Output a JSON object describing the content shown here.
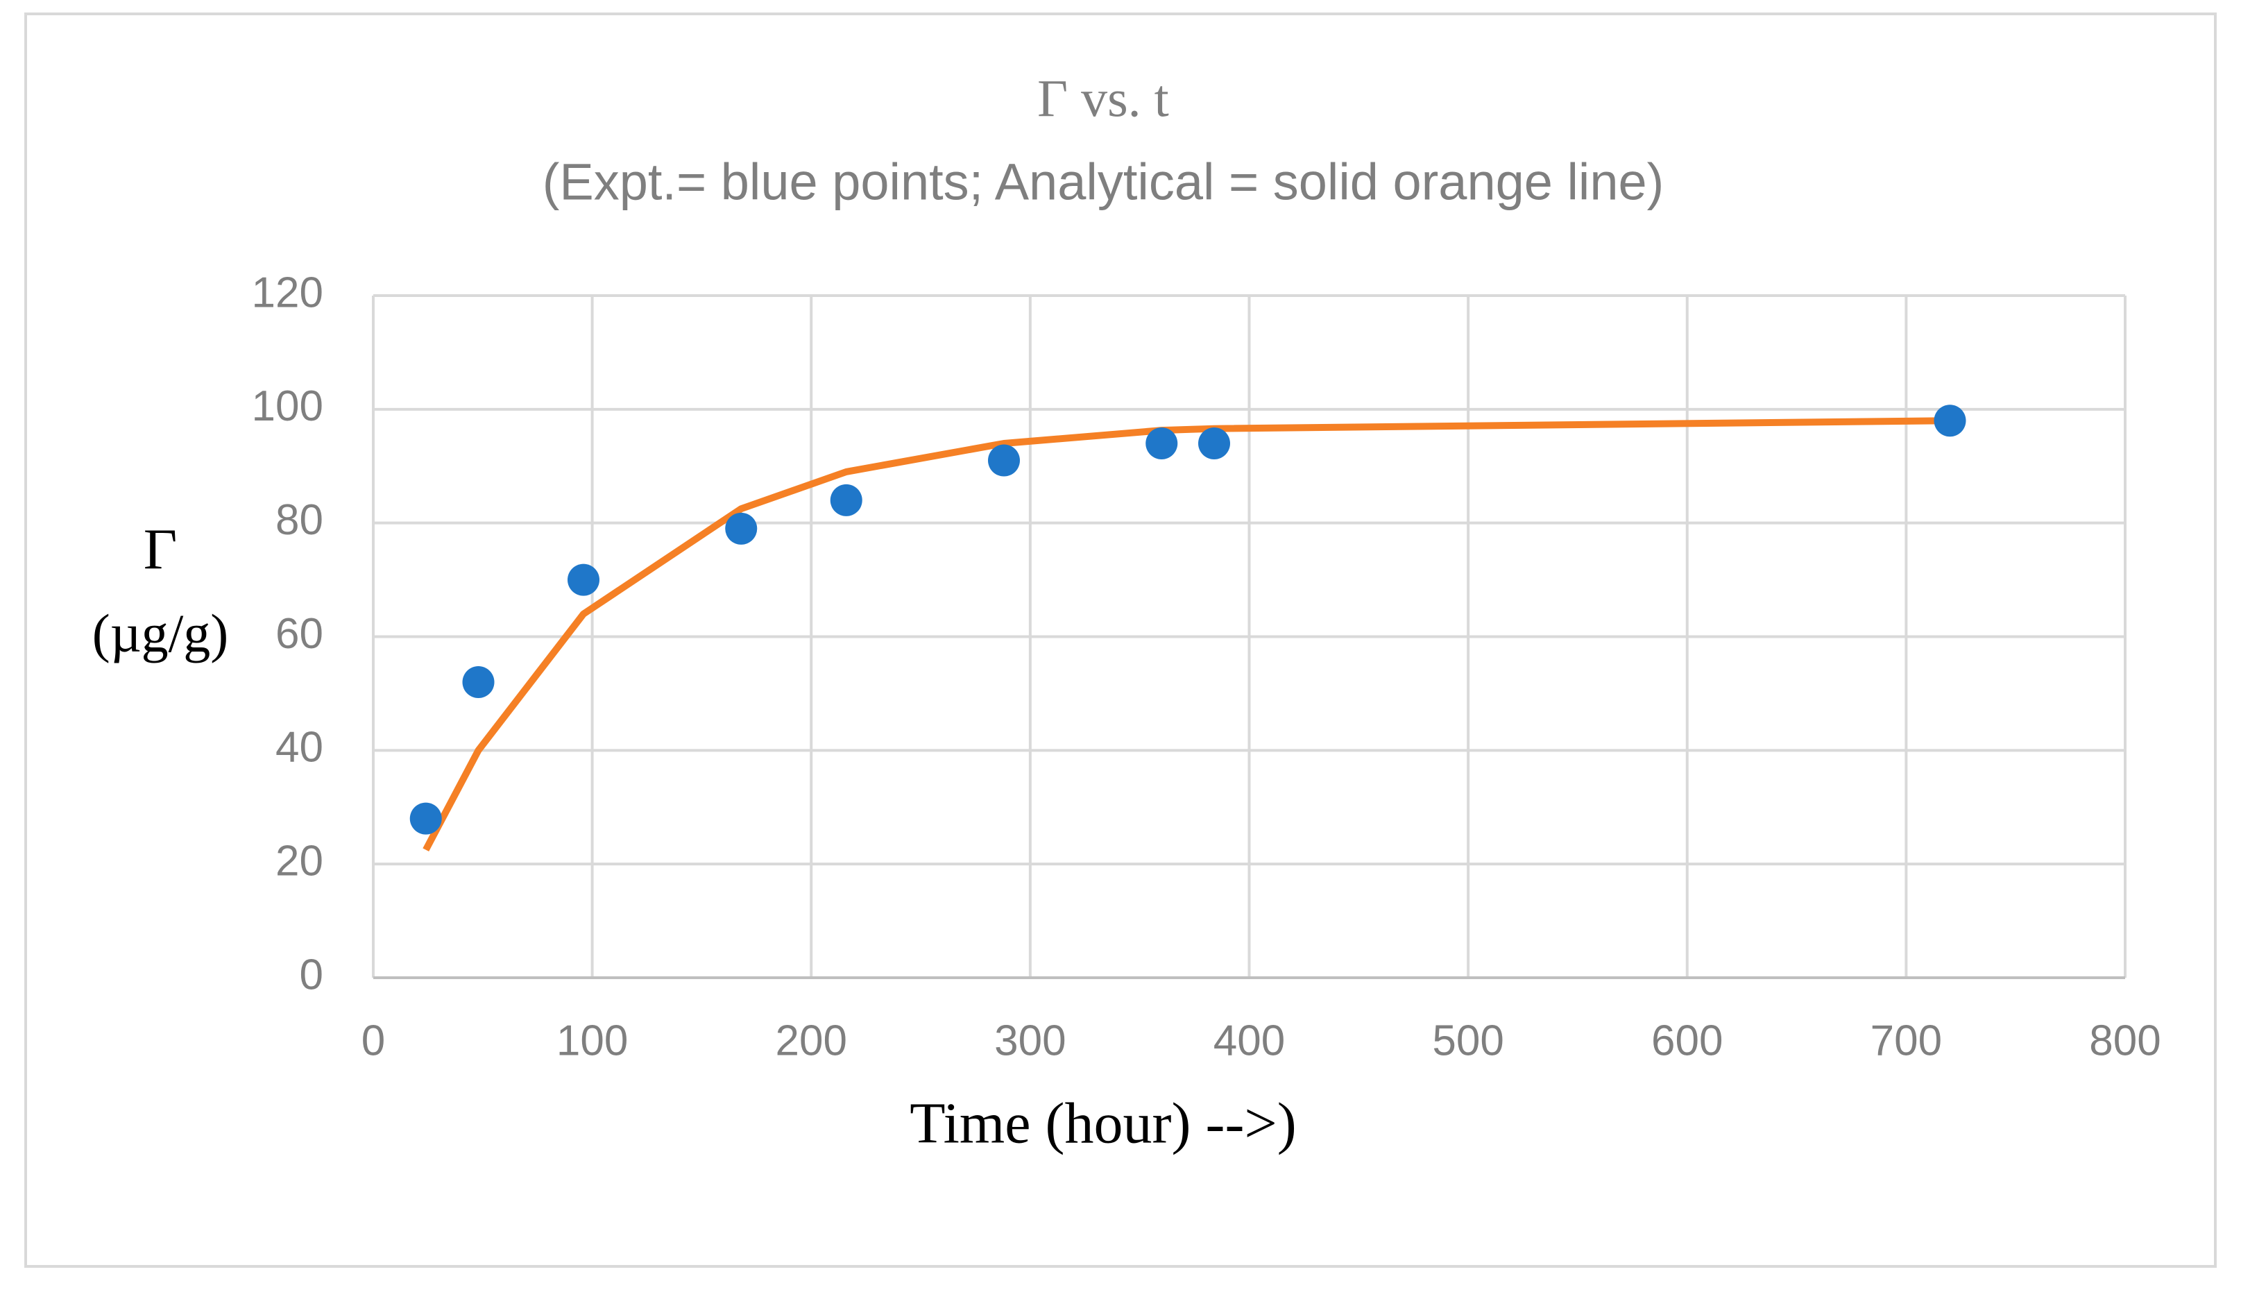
{
  "chart_data": {
    "type": "scatter",
    "title": "Γ vs. t",
    "subtitle": "(Expt.= blue points; Analytical = solid orange line)",
    "x_label": "Time (hour) -->)",
    "y_label": [
      "Γ",
      "(µg/g)"
    ],
    "xlim": [
      0,
      800
    ],
    "xticks": [
      0,
      100,
      200,
      300,
      400,
      500,
      600,
      700,
      800
    ],
    "ylim": [
      0,
      120
    ],
    "yticks": [
      0,
      20,
      40,
      60,
      80,
      100,
      120
    ],
    "grid": true,
    "series": [
      {
        "style": "markers",
        "color": "#1f77c9",
        "x": [
          24,
          48,
          96,
          168,
          216,
          288,
          360,
          384,
          720
        ],
        "values": [
          28,
          52,
          70,
          79,
          84,
          91,
          94,
          94,
          98
        ]
      },
      {
        "style": "line",
        "color": "#f58025",
        "x": [
          24,
          48,
          96,
          168,
          216,
          288,
          360,
          384,
          720
        ],
        "values": [
          22.5,
          40,
          64,
          82.5,
          89,
          94,
          96.3,
          96.6,
          98
        ]
      }
    ]
  }
}
